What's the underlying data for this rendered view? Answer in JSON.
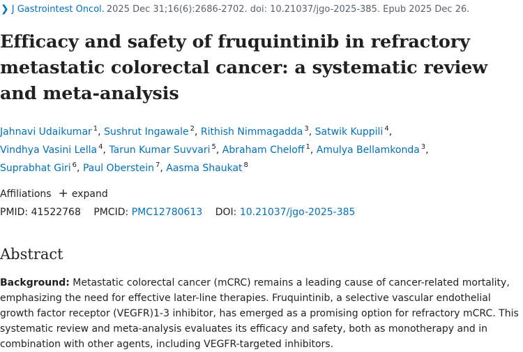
{
  "citation": {
    "journal": "J Gastrointest Oncol.",
    "details": "2025 Dec 31;16(6):2686-2702. doi: 10.21037/jgo-2025-385. Epub 2025 Dec 26."
  },
  "title": "Efficacy and safety of fruquintinib in refractory metastatic colorectal cancer: a systematic review and meta-analysis",
  "authors": [
    {
      "name": "Jahnavi Udaikumar",
      "aff": "1"
    },
    {
      "name": "Sushrut Ingawale",
      "aff": "2"
    },
    {
      "name": "Rithish Nimmagadda",
      "aff": "3"
    },
    {
      "name": "Satwik Kuppili",
      "aff": "4"
    },
    {
      "name": "Vindhya Vasini Lella",
      "aff": "4"
    },
    {
      "name": "Tarun Kumar Suvvari",
      "aff": "5"
    },
    {
      "name": "Abraham Cheloff",
      "aff": "1"
    },
    {
      "name": "Amulya Bellamkonda",
      "aff": "3"
    },
    {
      "name": "Suprabhat Giri",
      "aff": "6"
    },
    {
      "name": "Paul Oberstein",
      "aff": "7"
    },
    {
      "name": "Aasma Shaukat",
      "aff": "8"
    }
  ],
  "affiliations": {
    "label": "Affiliations",
    "expand_label": "expand"
  },
  "identifiers": {
    "pmid_label": "PMID:",
    "pmid": "41522768",
    "pmcid_label": "PMCID:",
    "pmcid": "PMC12780613",
    "doi_label": "DOI:",
    "doi": "10.21037/jgo-2025-385"
  },
  "abstract": {
    "heading": "Abstract",
    "background_label": "Background:",
    "background_text": "Metastatic colorectal cancer (mCRC) remains a leading cause of cancer-related mortality, emphasizing the need for effective later-line therapies. Fruquintinib, a selective vascular endothelial growth factor receptor (VEGFR)1-3 inhibitor, has emerged as a promising option for refractory mCRC. This systematic review and meta-analysis evaluates its efficacy and safety, both as monotherapy and in combination with other agents, including VEGFR-targeted inhibitors."
  },
  "colors": {
    "link": "#0071bc",
    "text": "#212121",
    "muted": "#5b616b"
  }
}
